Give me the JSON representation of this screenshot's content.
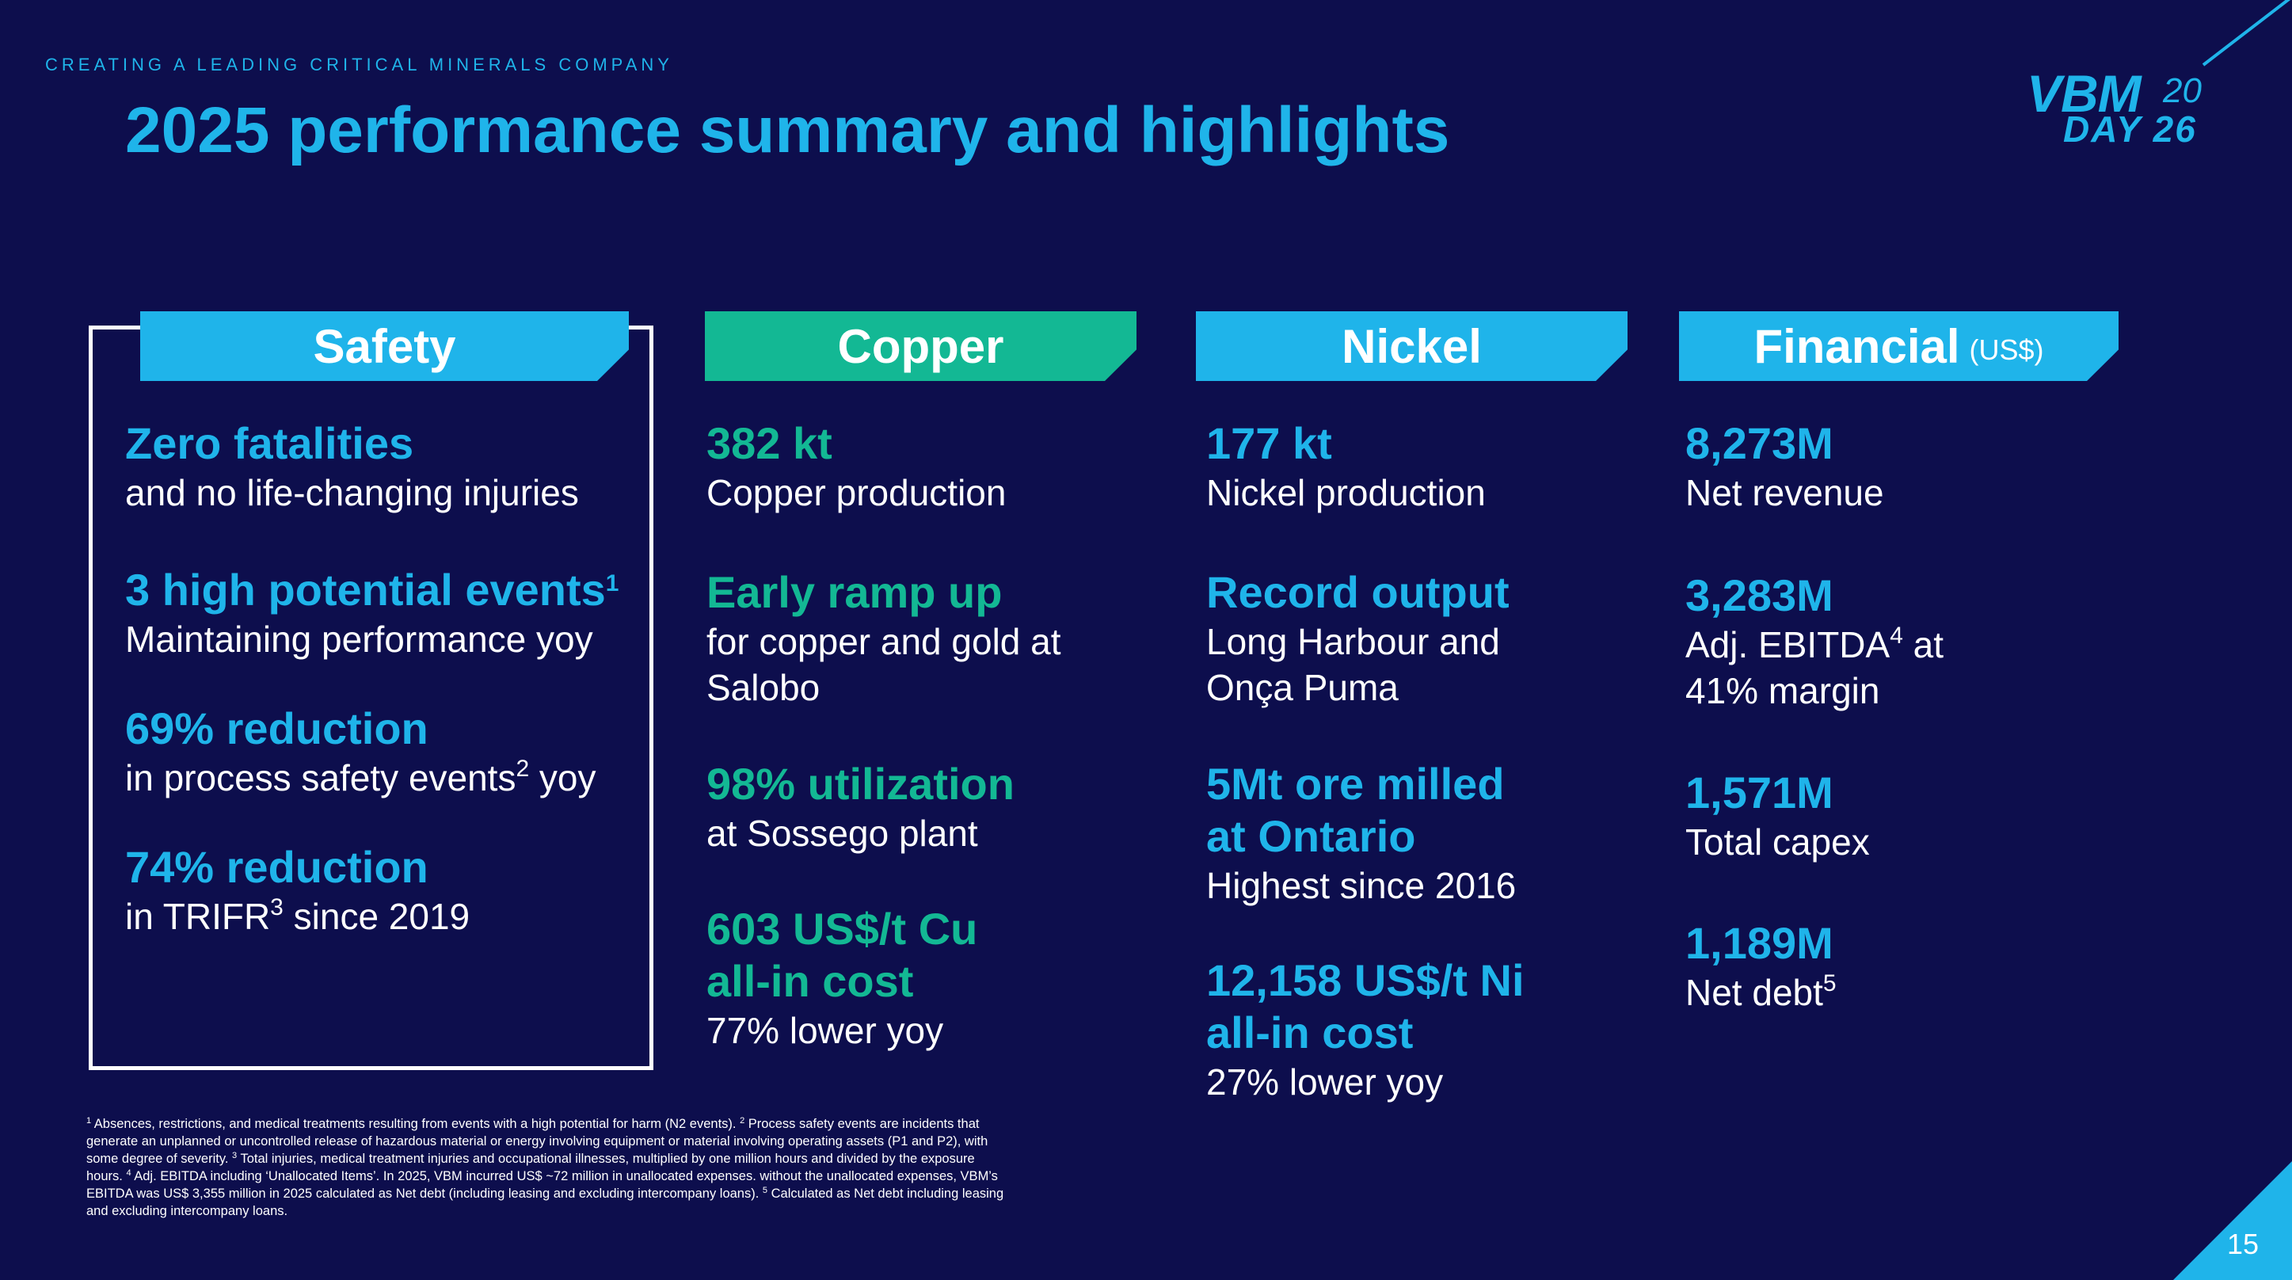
{
  "kicker": "CREATING A LEADING CRITICAL MINERALS COMPANY",
  "title": "2025 performance summary and highlights",
  "logo": {
    "brand": "VBM",
    "year_prefix": "20",
    "day": "DAY 26"
  },
  "safety": {
    "header": "Safety",
    "items": [
      {
        "big": "Zero fatalities",
        "desc": "and no life-changing injuries"
      },
      {
        "big": "3 high potential events",
        "big_sup": "1",
        "desc": "Maintaining performance yoy"
      },
      {
        "big": "69% reduction",
        "desc": "in process safety events",
        "desc_sup": "2",
        "desc_after": " yoy"
      },
      {
        "big": "74% reduction",
        "desc": "in TRIFR",
        "desc_sup": "3",
        "desc_after": " since 2019"
      }
    ]
  },
  "copper": {
    "header": "Copper",
    "items": [
      {
        "big": "382 kt",
        "desc": "Copper production"
      },
      {
        "big": "Early ramp up",
        "desc_line1": "for copper and gold at",
        "desc_line2": "Salobo"
      },
      {
        "big": "98% utilization",
        "desc": "at Sossego plant"
      },
      {
        "big_line1": "603 US$/t Cu",
        "big_line2": "all-in cost",
        "desc": "77% lower yoy"
      }
    ]
  },
  "nickel": {
    "header": "Nickel",
    "items": [
      {
        "big": "177 kt",
        "desc": "Nickel production"
      },
      {
        "big": "Record output",
        "desc_line1": "Long Harbour and",
        "desc_line2": "Onça Puma"
      },
      {
        "big_line1": "5Mt ore milled",
        "big_line2": "at Ontario",
        "desc": "Highest since 2016"
      },
      {
        "big_line1": "12,158 US$/t Ni",
        "big_line2": "all-in cost",
        "desc": "27% lower yoy"
      }
    ]
  },
  "financial": {
    "header": "Financial",
    "header_sub": "(US$)",
    "items": [
      {
        "big": "8,273M",
        "desc": "Net revenue"
      },
      {
        "big": "3,283M",
        "desc_a": "Adj. EBITDA",
        "desc_sup": "4",
        "desc_b": " at",
        "desc_line2": "41% margin"
      },
      {
        "big": "1,571M",
        "desc": "Total capex"
      },
      {
        "big": "1,189M",
        "desc": "Net debt",
        "desc_sup": "5"
      }
    ]
  },
  "footnote": {
    "s1": "1",
    "t1": " Absences, restrictions, and medical treatments resulting from events with a high potential for harm (N2 events). ",
    "s2": "2",
    "t2": " Process safety events are incidents that generate an unplanned or uncontrolled release of hazardous material or energy involving equipment or material  involving operating assets (P1 and P2), with some degree of severity. ",
    "s3": "3",
    "t3": " Total injuries, medical treatment injuries and occupational illnesses, multiplied by one million hours and divided by the exposure hours. ",
    "s4": "4",
    "t4": " Adj. EBITDA including ‘Unallocated Items’. In 2025, VBM incurred US$ ~72 million in unallocated expenses. without the unallocated expenses, VBM’s EBITDA was US$ 3,355 million in 2025 calculated as Net debt (including leasing and excluding intercompany loans).  ",
    "s5": "5",
    "t5": " Calculated as Net debt including leasing and excluding intercompany loans."
  },
  "page_number": "15",
  "colors": {
    "background": "#0d0e4d",
    "blue": "#1fb4ea",
    "green": "#13b894",
    "white": "#ffffff"
  }
}
